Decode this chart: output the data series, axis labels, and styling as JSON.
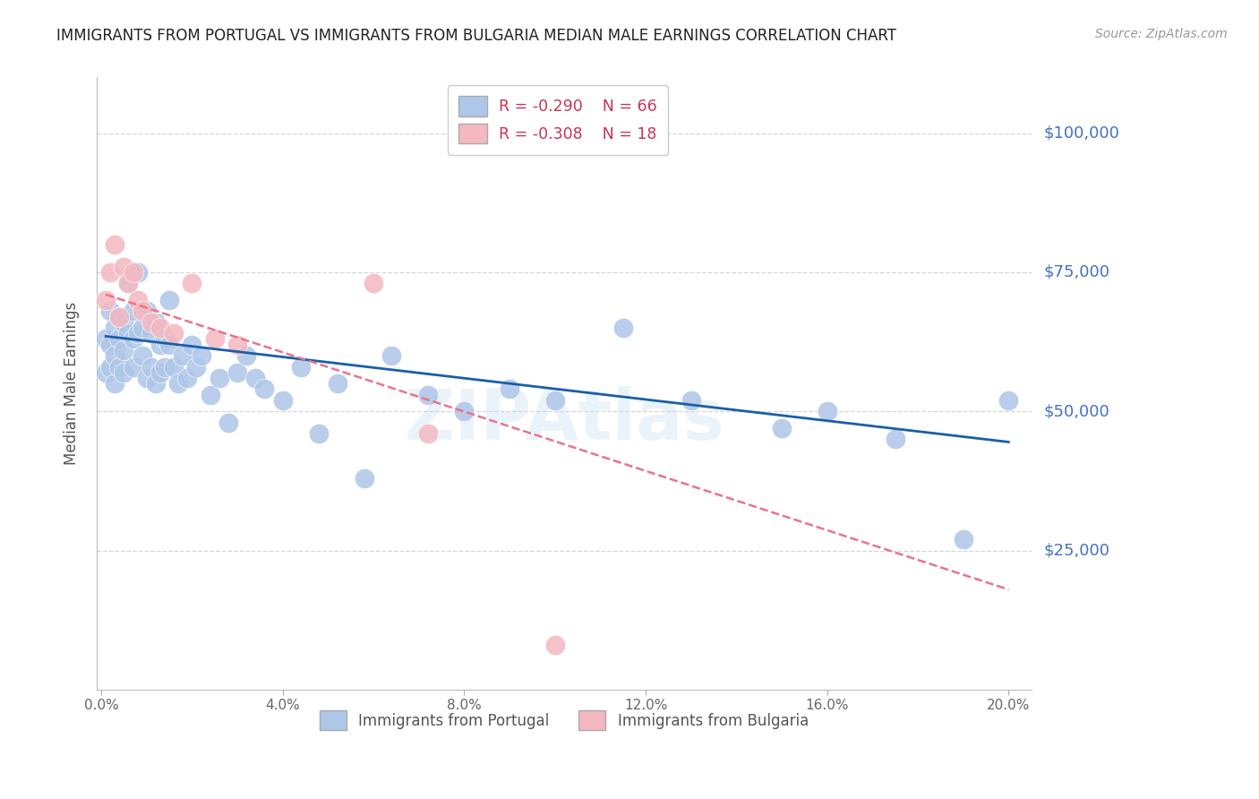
{
  "title": "IMMIGRANTS FROM PORTUGAL VS IMMIGRANTS FROM BULGARIA MEDIAN MALE EARNINGS CORRELATION CHART",
  "source": "Source: ZipAtlas.com",
  "ylabel": "Median Male Earnings",
  "ytick_labels": [
    "$100,000",
    "$75,000",
    "$50,000",
    "$25,000"
  ],
  "ytick_values": [
    100000,
    75000,
    50000,
    25000
  ],
  "ymin": 0,
  "ymax": 110000,
  "xmin": -0.001,
  "xmax": 0.205,
  "r_portugal": -0.29,
  "n_portugal": 66,
  "r_bulgaria": -0.308,
  "n_bulgaria": 18,
  "portugal_color": "#aec6e8",
  "bulgaria_color": "#f4b8c1",
  "portugal_line_color": "#1a5fa8",
  "bulgaria_line_color": "#e8748a",
  "watermark": "ZIPAtlas",
  "portugal_scatter_x": [
    0.001,
    0.001,
    0.002,
    0.002,
    0.002,
    0.003,
    0.003,
    0.003,
    0.004,
    0.004,
    0.004,
    0.005,
    0.005,
    0.005,
    0.006,
    0.006,
    0.007,
    0.007,
    0.007,
    0.008,
    0.008,
    0.009,
    0.009,
    0.01,
    0.01,
    0.011,
    0.011,
    0.012,
    0.012,
    0.013,
    0.013,
    0.014,
    0.014,
    0.015,
    0.015,
    0.016,
    0.017,
    0.018,
    0.019,
    0.02,
    0.021,
    0.022,
    0.024,
    0.026,
    0.028,
    0.03,
    0.032,
    0.034,
    0.036,
    0.04,
    0.044,
    0.048,
    0.052,
    0.058,
    0.064,
    0.072,
    0.08,
    0.09,
    0.1,
    0.115,
    0.13,
    0.15,
    0.16,
    0.175,
    0.19,
    0.2
  ],
  "portugal_scatter_y": [
    63000,
    57000,
    68000,
    62000,
    58000,
    65000,
    60000,
    55000,
    67000,
    63000,
    58000,
    66000,
    61000,
    57000,
    73000,
    64000,
    68000,
    63000,
    58000,
    75000,
    64000,
    65000,
    60000,
    68000,
    56000,
    64000,
    58000,
    66000,
    55000,
    62000,
    57000,
    63000,
    58000,
    70000,
    62000,
    58000,
    55000,
    60000,
    56000,
    62000,
    58000,
    60000,
    53000,
    56000,
    48000,
    57000,
    60000,
    56000,
    54000,
    52000,
    58000,
    46000,
    55000,
    38000,
    60000,
    53000,
    50000,
    54000,
    52000,
    65000,
    52000,
    47000,
    50000,
    45000,
    27000,
    52000
  ],
  "bulgaria_scatter_x": [
    0.001,
    0.002,
    0.003,
    0.004,
    0.005,
    0.006,
    0.007,
    0.008,
    0.009,
    0.011,
    0.013,
    0.016,
    0.02,
    0.025,
    0.03,
    0.06,
    0.072,
    0.1
  ],
  "bulgaria_scatter_y": [
    70000,
    75000,
    80000,
    67000,
    76000,
    73000,
    75000,
    70000,
    68000,
    66000,
    65000,
    64000,
    73000,
    63000,
    62000,
    73000,
    46000,
    8000
  ],
  "portugal_line_x": [
    0.001,
    0.2
  ],
  "portugal_line_y": [
    63500,
    44500
  ],
  "bulgaria_line_x": [
    0.001,
    0.2
  ],
  "bulgaria_line_y": [
    71000,
    18000
  ],
  "xtick_vals": [
    0.0,
    0.04,
    0.08,
    0.12,
    0.16,
    0.2
  ],
  "xtick_labels": [
    "0.0%",
    "4.0%",
    "8.0%",
    "12.0%",
    "16.0%",
    "20.0%"
  ]
}
